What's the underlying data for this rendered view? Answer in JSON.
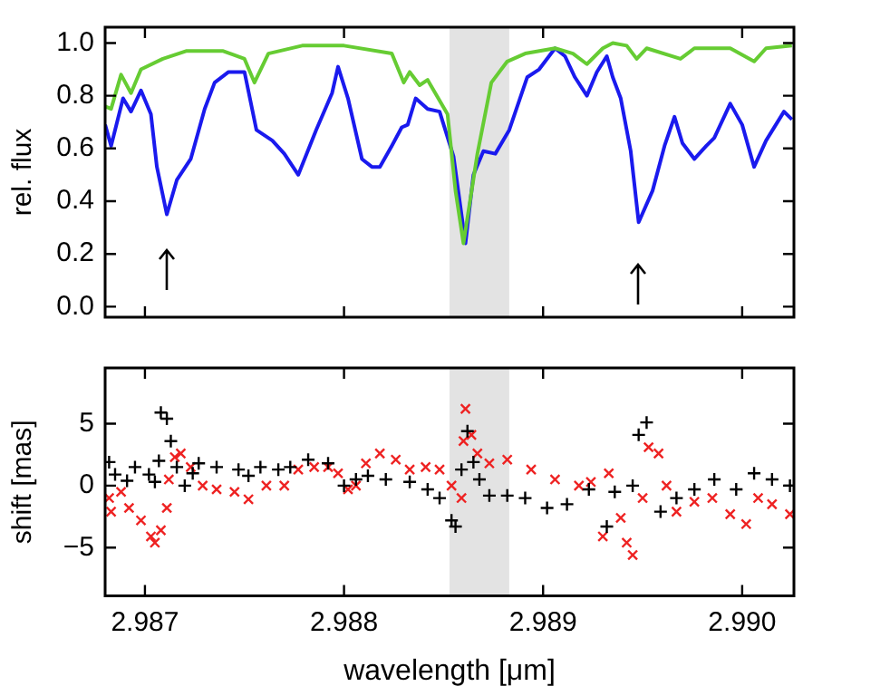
{
  "chart_data": [
    {
      "type": "line",
      "ylabel": "rel. flux",
      "xlim": [
        2.9868,
        2.99026
      ],
      "ylim": [
        -0.04,
        1.06
      ],
      "xticks": [
        2.987,
        2.988,
        2.989,
        2.99
      ],
      "yticks": [
        {
          "value": 0,
          "label": "0.0"
        },
        {
          "value": 0.2,
          "label": "0.2"
        },
        {
          "value": 0.4,
          "label": "0.4"
        },
        {
          "value": 0.6,
          "label": "0.6"
        },
        {
          "value": 0.8,
          "label": "0.8"
        },
        {
          "value": 1,
          "label": "1.0"
        }
      ],
      "tick_labels": "y",
      "grid": false,
      "legend": false,
      "marker": "none",
      "line_style": "solid",
      "bands": [
        {
          "axis": "x",
          "from": 2.98853,
          "to": 2.98883,
          "color": "#e3e3e3"
        }
      ],
      "series": [
        {
          "color": "#66cc33",
          "x": [
            2.9868,
            2.98683,
            2.98688,
            2.98693,
            2.98698,
            2.98709,
            2.98721,
            2.98739,
            2.9875,
            2.98755,
            2.98762,
            2.98779,
            2.988,
            2.98824,
            2.9883,
            2.98833,
            2.98838,
            2.98842,
            2.98852,
            2.98856,
            2.9886,
            2.98867,
            2.98874,
            2.98882,
            2.98891,
            2.98906,
            2.98915,
            2.98922,
            2.9893,
            2.98935,
            2.98942,
            2.98947,
            2.98952,
            2.98969,
            2.98976,
            2.98994,
            2.99006,
            2.99012,
            2.99025
          ],
          "values": [
            0.76,
            0.75,
            0.88,
            0.81,
            0.9,
            0.94,
            0.97,
            0.97,
            0.94,
            0.85,
            0.96,
            0.99,
            0.99,
            0.96,
            0.85,
            0.89,
            0.84,
            0.86,
            0.73,
            0.44,
            0.24,
            0.58,
            0.85,
            0.93,
            0.96,
            0.98,
            0.96,
            0.92,
            0.98,
            1.0,
            0.99,
            0.94,
            0.98,
            0.94,
            0.98,
            0.98,
            0.93,
            0.98,
            0.99
          ]
        },
        {
          "color": "#1a1aee",
          "x": [
            2.9868,
            2.98683,
            2.98689,
            2.98693,
            2.98698,
            2.98703,
            2.98706,
            2.98711,
            2.98716,
            2.98723,
            2.9873,
            2.98735,
            2.98742,
            2.9875,
            2.98756,
            2.98764,
            2.9877,
            2.98777,
            2.98786,
            2.98794,
            2.98797,
            2.98802,
            2.98809,
            2.98814,
            2.98818,
            2.98824,
            2.98829,
            2.98832,
            2.98836,
            2.98842,
            2.98848,
            2.98855,
            2.98861,
            2.98865,
            2.9887,
            2.98876,
            2.98883,
            2.98892,
            2.98898,
            2.98906,
            2.98911,
            2.98916,
            2.98922,
            2.98927,
            2.98932,
            2.98935,
            2.98939,
            2.98944,
            2.98948,
            2.98955,
            2.98961,
            2.98966,
            2.9897,
            2.98976,
            2.98982,
            2.98986,
            2.98994,
            2.99,
            2.99006,
            2.99012,
            2.99021,
            2.99025
          ],
          "values": [
            0.69,
            0.61,
            0.79,
            0.74,
            0.82,
            0.73,
            0.53,
            0.35,
            0.48,
            0.56,
            0.75,
            0.85,
            0.89,
            0.89,
            0.67,
            0.63,
            0.58,
            0.5,
            0.67,
            0.81,
            0.91,
            0.79,
            0.56,
            0.53,
            0.53,
            0.61,
            0.68,
            0.69,
            0.79,
            0.75,
            0.74,
            0.57,
            0.24,
            0.5,
            0.59,
            0.58,
            0.67,
            0.87,
            0.9,
            0.98,
            0.95,
            0.87,
            0.8,
            0.89,
            0.95,
            0.87,
            0.79,
            0.59,
            0.32,
            0.44,
            0.61,
            0.72,
            0.62,
            0.56,
            0.61,
            0.64,
            0.77,
            0.69,
            0.53,
            0.63,
            0.74,
            0.71
          ]
        }
      ]
    },
    {
      "type": "scatter",
      "xlabel": "wavelength [μm]",
      "ylabel": "shift [mas]",
      "xlim": [
        2.9868,
        2.99026
      ],
      "ylim": [
        -8.9,
        9.5
      ],
      "xticks": [
        2.987,
        2.988,
        2.989,
        {
          "value": 2.99,
          "label": "2.990"
        }
      ],
      "yticks": [
        {
          "value": -5,
          "label": "−5"
        },
        0,
        5
      ],
      "grid": false,
      "legend": false,
      "bands": [
        {
          "axis": "x",
          "from": 2.98853,
          "to": 2.98883,
          "color": "#e3e3e3"
        }
      ],
      "series": [
        {
          "color": "#000000",
          "marker": "cross",
          "x": [
            2.98682,
            2.98685,
            2.98691,
            2.98695,
            2.98702,
            2.98705,
            2.98707,
            2.98708,
            2.98711,
            2.98713,
            2.98716,
            2.9872,
            2.98724,
            2.98727,
            2.98736,
            2.98747,
            2.98752,
            2.98758,
            2.98767,
            2.98773,
            2.98782,
            2.98792,
            2.988,
            2.98806,
            2.98812,
            2.98821,
            2.98833,
            2.98842,
            2.98848,
            2.98854,
            2.98856,
            2.98859,
            2.98862,
            2.98865,
            2.98868,
            2.98873,
            2.98882,
            2.98891,
            2.98902,
            2.98912,
            2.98923,
            2.98932,
            2.98936,
            2.98945,
            2.98948,
            2.98952,
            2.98959,
            2.98967,
            2.98976,
            2.98986,
            2.98997,
            2.99006,
            2.99015,
            2.99024
          ],
          "values": [
            1.9,
            0.9,
            0.4,
            1.5,
            0.9,
            0.3,
            2.0,
            5.9,
            5.4,
            3.6,
            1.5,
            0,
            1,
            1.8,
            1.5,
            1.3,
            0.8,
            1.5,
            1.3,
            1.5,
            2.1,
            1.8,
            0,
            0.5,
            0.8,
            0.5,
            0.3,
            -0.3,
            -1,
            -2.8,
            -3.3,
            1.3,
            4.4,
            1.9,
            0.5,
            -0.8,
            -0.8,
            -1,
            -1.8,
            -1.5,
            -0.3,
            -3.3,
            -0.5,
            0,
            4.1,
            5.1,
            -2.1,
            -1,
            -0.3,
            0.5,
            -0.3,
            1,
            0.5,
            0
          ]
        },
        {
          "color": "#ee2222",
          "marker": "x",
          "x": [
            2.98682,
            2.98683,
            2.98688,
            2.98692,
            2.98698,
            2.98703,
            2.98705,
            2.98708,
            2.98711,
            2.98712,
            2.98715,
            2.98718,
            2.98723,
            2.98729,
            2.98736,
            2.98745,
            2.98752,
            2.98761,
            2.9877,
            2.98777,
            2.98785,
            2.98792,
            2.98797,
            2.98802,
            2.98806,
            2.98811,
            2.98818,
            2.98826,
            2.98833,
            2.98841,
            2.98848,
            2.98854,
            2.98859,
            2.9886,
            2.98861,
            2.98864,
            2.98867,
            2.98873,
            2.98882,
            2.98894,
            2.98906,
            2.98918,
            2.98924,
            2.9893,
            2.98933,
            2.98939,
            2.98942,
            2.98945,
            2.9895,
            2.98953,
            2.98958,
            2.98962,
            2.98967,
            2.98976,
            2.98985,
            2.98994,
            2.99002,
            2.99008,
            2.99015,
            2.99024
          ],
          "values": [
            -1,
            -2.1,
            -0.5,
            -1.8,
            -2.8,
            -4.1,
            -4.6,
            -3.6,
            -1.8,
            0.5,
            2.3,
            2.6,
            1.5,
            0,
            -0.3,
            -0.5,
            -1.1,
            0,
            0,
            1.3,
            1.5,
            1.5,
            1,
            -0.3,
            0,
            1.8,
            2.6,
            2.1,
            1.3,
            1.5,
            1.3,
            0,
            -1,
            3.6,
            6.2,
            4.1,
            2.6,
            1.8,
            2.1,
            1.3,
            0.5,
            0,
            0.3,
            -4.1,
            1,
            -2.6,
            -4.6,
            -5.6,
            -1,
            3.1,
            2.6,
            0,
            -2.1,
            -1.3,
            -1,
            -2.3,
            -3.1,
            -1,
            -1.5,
            -2.3
          ]
        }
      ]
    }
  ]
}
